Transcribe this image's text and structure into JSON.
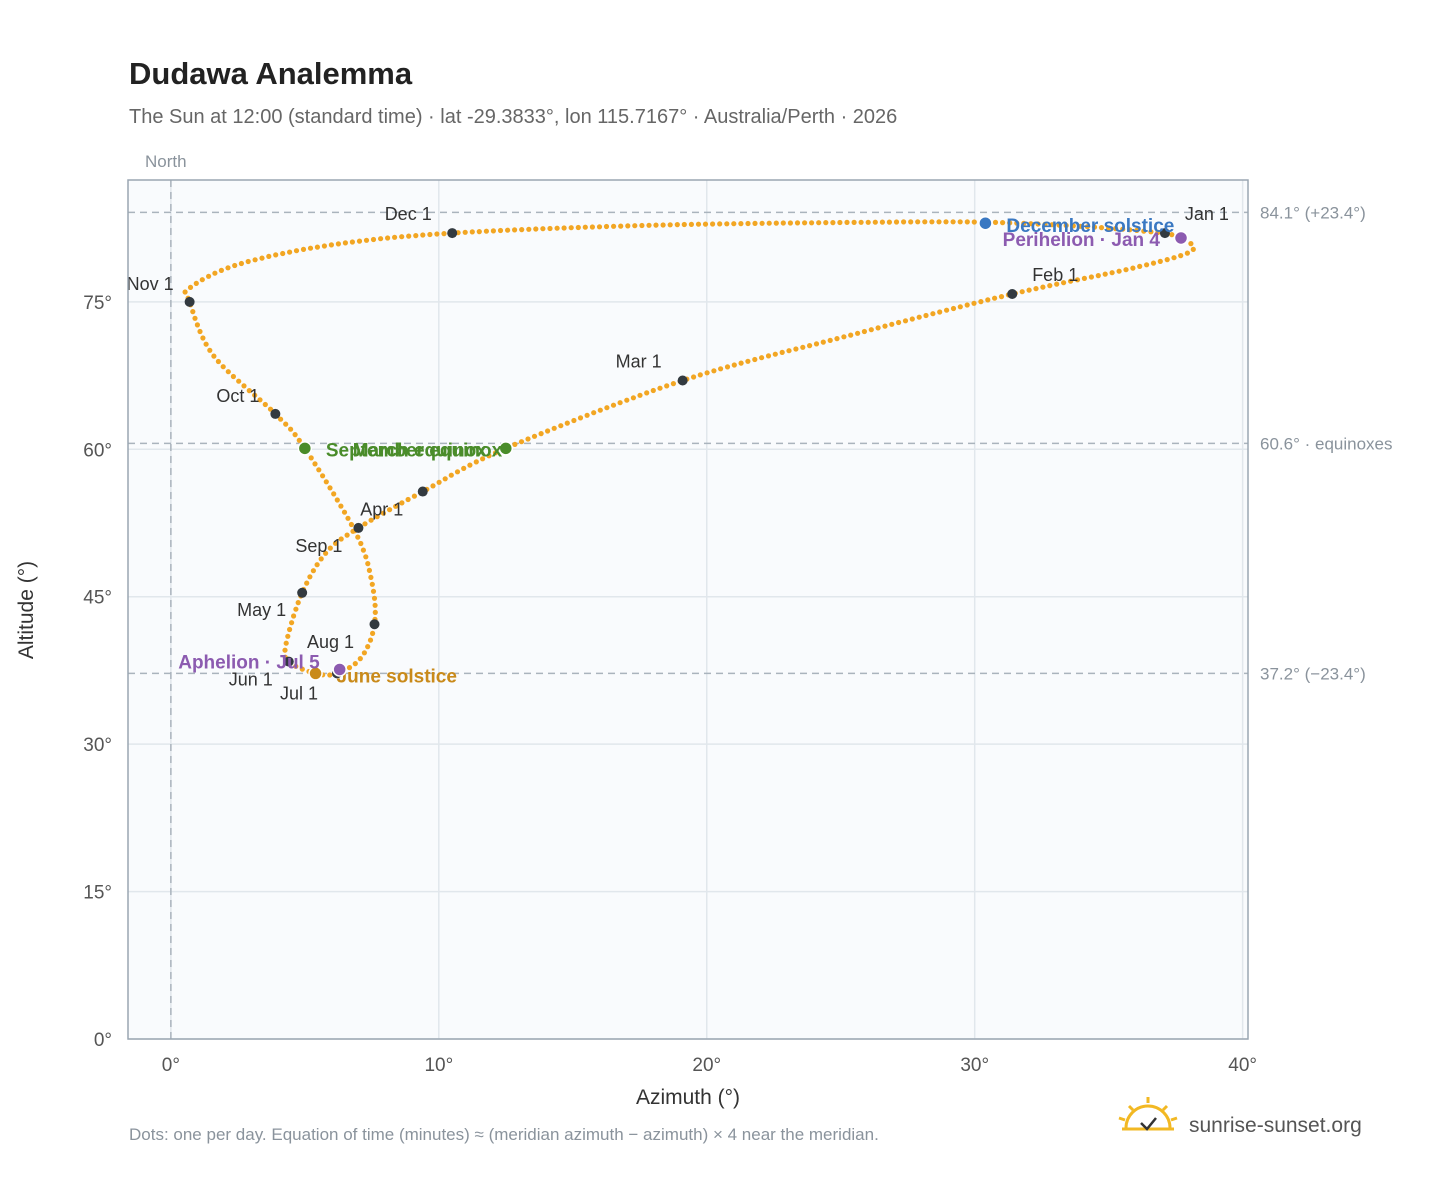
{
  "header": {
    "title": "Dudawa Analemma",
    "subtitle": "The Sun at 12:00 (standard time) · lat -29.3833°, lon 115.7167° · Australia/Perth · 2026"
  },
  "north_label": "North",
  "footnote": "Dots: one per day. Equation of time (minutes) ≈ (meridian azimuth − azimuth) × 4 near the meridian.",
  "brand": {
    "name": "sunrise-sunset.org",
    "icon": "sun-checkmark-icon"
  },
  "colors": {
    "path": "#f2a623",
    "month_dot": "#333a40",
    "equinox": "#4a8c2a",
    "december_solstice": "#3a78c2",
    "june_solstice": "#c98a1a",
    "perihelion_aphelion": "#8c5bb0",
    "plot_bg": "#f9fbfd",
    "grid": "#e1e7ec",
    "ref_line": "#aab4bd"
  },
  "chart_data": {
    "type": "scatter",
    "xlabel": "Azimuth (°)",
    "ylabel": "Altitude (°)",
    "xlim": [
      -1.6,
      40.2
    ],
    "ylim": [
      0,
      87.4
    ],
    "xticks": [
      0,
      10,
      20,
      30,
      40
    ],
    "xtick_labels": [
      "0°",
      "10°",
      "20°",
      "30°",
      "40°"
    ],
    "yticks": [
      0,
      15,
      30,
      45,
      60,
      75
    ],
    "ytick_labels": [
      "0°",
      "15°",
      "30°",
      "45°",
      "60°",
      "75°"
    ],
    "grid": true,
    "north_azimuth": 0,
    "reference_lines": [
      {
        "altitude": 84.1,
        "label": "84.1° (+23.4°)"
      },
      {
        "altitude": 60.6,
        "label": "60.6° · equinoxes"
      },
      {
        "altitude": 37.2,
        "label": "37.2° (−23.4°)"
      }
    ],
    "path_knots": [
      {
        "x": 37.1,
        "y": 82.0
      },
      {
        "x": 37.7,
        "y": 81.5
      },
      {
        "x": 38.1,
        "y": 80.2
      },
      {
        "x": 36.0,
        "y": 78.5
      },
      {
        "x": 31.4,
        "y": 75.8
      },
      {
        "x": 25.2,
        "y": 71.5
      },
      {
        "x": 19.1,
        "y": 67.0
      },
      {
        "x": 12.5,
        "y": 60.1
      },
      {
        "x": 9.4,
        "y": 55.7
      },
      {
        "x": 7.0,
        "y": 52.0
      },
      {
        "x": 5.8,
        "y": 49.5
      },
      {
        "x": 4.9,
        "y": 45.4
      },
      {
        "x": 4.3,
        "y": 40.2
      },
      {
        "x": 4.4,
        "y": 38.4
      },
      {
        "x": 5.4,
        "y": 37.2
      },
      {
        "x": 6.2,
        "y": 37.2
      },
      {
        "x": 7.1,
        "y": 38.8
      },
      {
        "x": 7.6,
        "y": 42.2
      },
      {
        "x": 7.5,
        "y": 46.5
      },
      {
        "x": 6.9,
        "y": 51.5
      },
      {
        "x": 5.0,
        "y": 60.1
      },
      {
        "x": 3.9,
        "y": 63.6
      },
      {
        "x": 1.6,
        "y": 69.5
      },
      {
        "x": 0.7,
        "y": 75.0
      },
      {
        "x": 0.7,
        "y": 76.4
      },
      {
        "x": 2.5,
        "y": 78.8
      },
      {
        "x": 6.0,
        "y": 80.8
      },
      {
        "x": 10.5,
        "y": 82.0
      },
      {
        "x": 18.0,
        "y": 82.8
      },
      {
        "x": 26.0,
        "y": 83.1
      },
      {
        "x": 30.5,
        "y": 83.1
      },
      {
        "x": 34.5,
        "y": 82.6
      },
      {
        "x": 37.1,
        "y": 82.0
      }
    ],
    "month_points": [
      {
        "label": "Jan 1",
        "x": 37.1,
        "y": 82.0
      },
      {
        "label": "Feb 1",
        "x": 31.4,
        "y": 75.8
      },
      {
        "label": "Mar 1",
        "x": 19.1,
        "y": 67.0
      },
      {
        "label": "Apr 1",
        "x": 9.4,
        "y": 55.7
      },
      {
        "label": "May 1",
        "x": 4.9,
        "y": 45.4
      },
      {
        "label": "Jun 1",
        "x": 4.4,
        "y": 38.4
      },
      {
        "label": "Jul 1",
        "x": 6.2,
        "y": 37.2
      },
      {
        "label": "Aug 1",
        "x": 7.6,
        "y": 42.2
      },
      {
        "label": "Sep 1",
        "x": 7.0,
        "y": 52.0
      },
      {
        "label": "Oct 1",
        "x": 3.9,
        "y": 63.6
      },
      {
        "label": "Nov 1",
        "x": 0.7,
        "y": 75.0
      },
      {
        "label": "Dec 1",
        "x": 10.5,
        "y": 82.0
      }
    ],
    "events": [
      {
        "label": "December solstice",
        "x": 30.4,
        "y": 83.0,
        "color_key": "december_solstice"
      },
      {
        "label": "Perihelion · Jan 4",
        "x": 37.7,
        "y": 81.5,
        "color_key": "perihelion_aphelion"
      },
      {
        "label": "March equinox",
        "x": 12.5,
        "y": 60.1,
        "color_key": "equinox"
      },
      {
        "label": "September equinox",
        "x": 5.0,
        "y": 60.1,
        "color_key": "equinox"
      },
      {
        "label": "June solstice",
        "x": 5.4,
        "y": 37.2,
        "color_key": "june_solstice"
      },
      {
        "label": "Aphelion · Jul 5",
        "x": 6.3,
        "y": 37.6,
        "color_key": "perihelion_aphelion"
      }
    ]
  }
}
